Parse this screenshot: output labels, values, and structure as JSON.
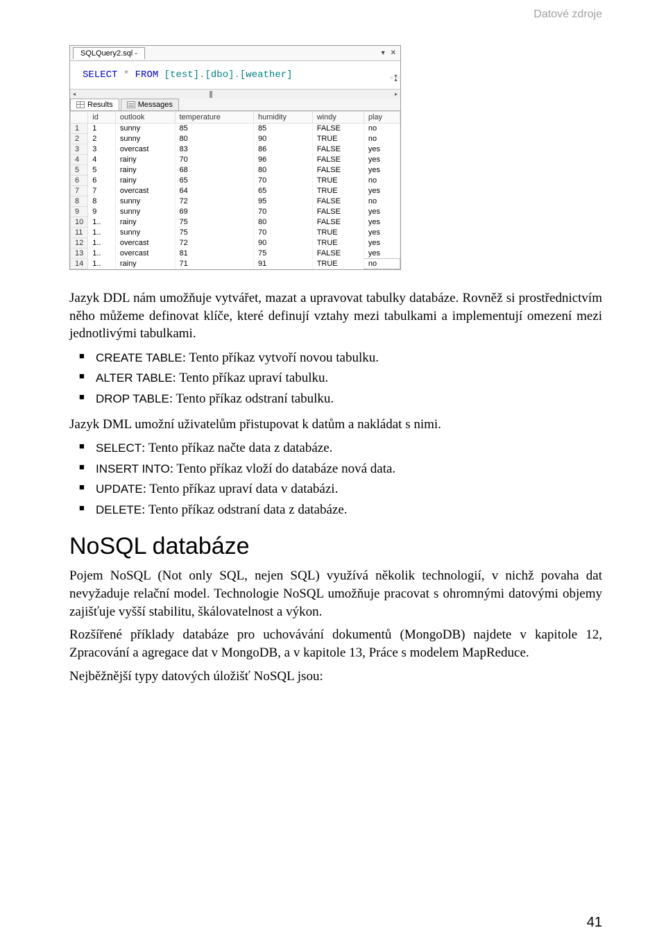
{
  "header": {
    "right": "Datové zdroje"
  },
  "sql": {
    "tab_title": "SQLQuery2.sql -",
    "code_html": "SELECT * FROM [test].[dbo].[weather]",
    "results_tab": "Results",
    "messages_tab": "Messages",
    "columns": [
      "",
      "id",
      "outlook",
      "temperature",
      "humidity",
      "windy",
      "play"
    ],
    "rows": [
      [
        "1",
        "1",
        "sunny",
        "85",
        "85",
        "FALSE",
        "no"
      ],
      [
        "2",
        "2",
        "sunny",
        "80",
        "90",
        "TRUE",
        "no"
      ],
      [
        "3",
        "3",
        "overcast",
        "83",
        "86",
        "FALSE",
        "yes"
      ],
      [
        "4",
        "4",
        "rainy",
        "70",
        "96",
        "FALSE",
        "yes"
      ],
      [
        "5",
        "5",
        "rainy",
        "68",
        "80",
        "FALSE",
        "yes"
      ],
      [
        "6",
        "6",
        "rainy",
        "65",
        "70",
        "TRUE",
        "no"
      ],
      [
        "7",
        "7",
        "overcast",
        "64",
        "65",
        "TRUE",
        "yes"
      ],
      [
        "8",
        "8",
        "sunny",
        "72",
        "95",
        "FALSE",
        "no"
      ],
      [
        "9",
        "9",
        "sunny",
        "69",
        "70",
        "FALSE",
        "yes"
      ],
      [
        "10",
        "1..",
        "rainy",
        "75",
        "80",
        "FALSE",
        "yes"
      ],
      [
        "11",
        "1..",
        "sunny",
        "75",
        "70",
        "TRUE",
        "yes"
      ],
      [
        "12",
        "1..",
        "overcast",
        "72",
        "90",
        "TRUE",
        "yes"
      ],
      [
        "13",
        "1..",
        "overcast",
        "81",
        "75",
        "FALSE",
        "yes"
      ],
      [
        "14",
        "1..",
        "rainy",
        "71",
        "91",
        "TRUE",
        "no"
      ]
    ]
  },
  "para1": "Jazyk DDL nám umožňuje vytvářet, mazat a upravovat tabulky databáze. Rovněž si prostřednictvím něho můžeme definovat klíče, které definují vztahy mezi tabulkami a implementují omezení mezi jednotlivými tabulkami.",
  "ddl": [
    {
      "cmd": "CREATE TABLE",
      "desc": ": Tento příkaz vytvoří novou tabulku."
    },
    {
      "cmd": "ALTER TABLE",
      "desc": ": Tento příkaz upraví tabulku."
    },
    {
      "cmd": "DROP TABLE",
      "desc": ": Tento příkaz odstraní tabulku."
    }
  ],
  "para2": "Jazyk DML umožní uživatelům přistupovat k datům a nakládat s nimi.",
  "dml": [
    {
      "cmd": "SELECT",
      "desc": ": Tento příkaz načte data z databáze."
    },
    {
      "cmd": "INSERT INTO",
      "desc": ": Tento příkaz vloží do databáze nová data."
    },
    {
      "cmd": "UPDATE",
      "desc": ": Tento příkaz upraví data v databázi."
    },
    {
      "cmd": "DELETE",
      "desc": ": Tento příkaz odstraní data z databáze."
    }
  ],
  "h2": "NoSQL databáze",
  "para3": "Pojem NoSQL (Not only SQL, nejen SQL) využívá několik technologií, v nichž povaha dat nevyžaduje relační model. Technologie NoSQL umožňuje pracovat s ohromnými datovými objemy zajišťuje vyšší stabilitu, škálovatelnost a výkon.",
  "para4": "Rozšířené příklady databáze pro uchovávání dokumentů (MongoDB) najdete v kapitole 12, Zpracování a agregace dat v MongoDB, a v kapitole 13, Práce s modelem MapReduce.",
  "para5": "Nejběžnější typy datových úložišť NoSQL jsou:",
  "pagenum": "41"
}
